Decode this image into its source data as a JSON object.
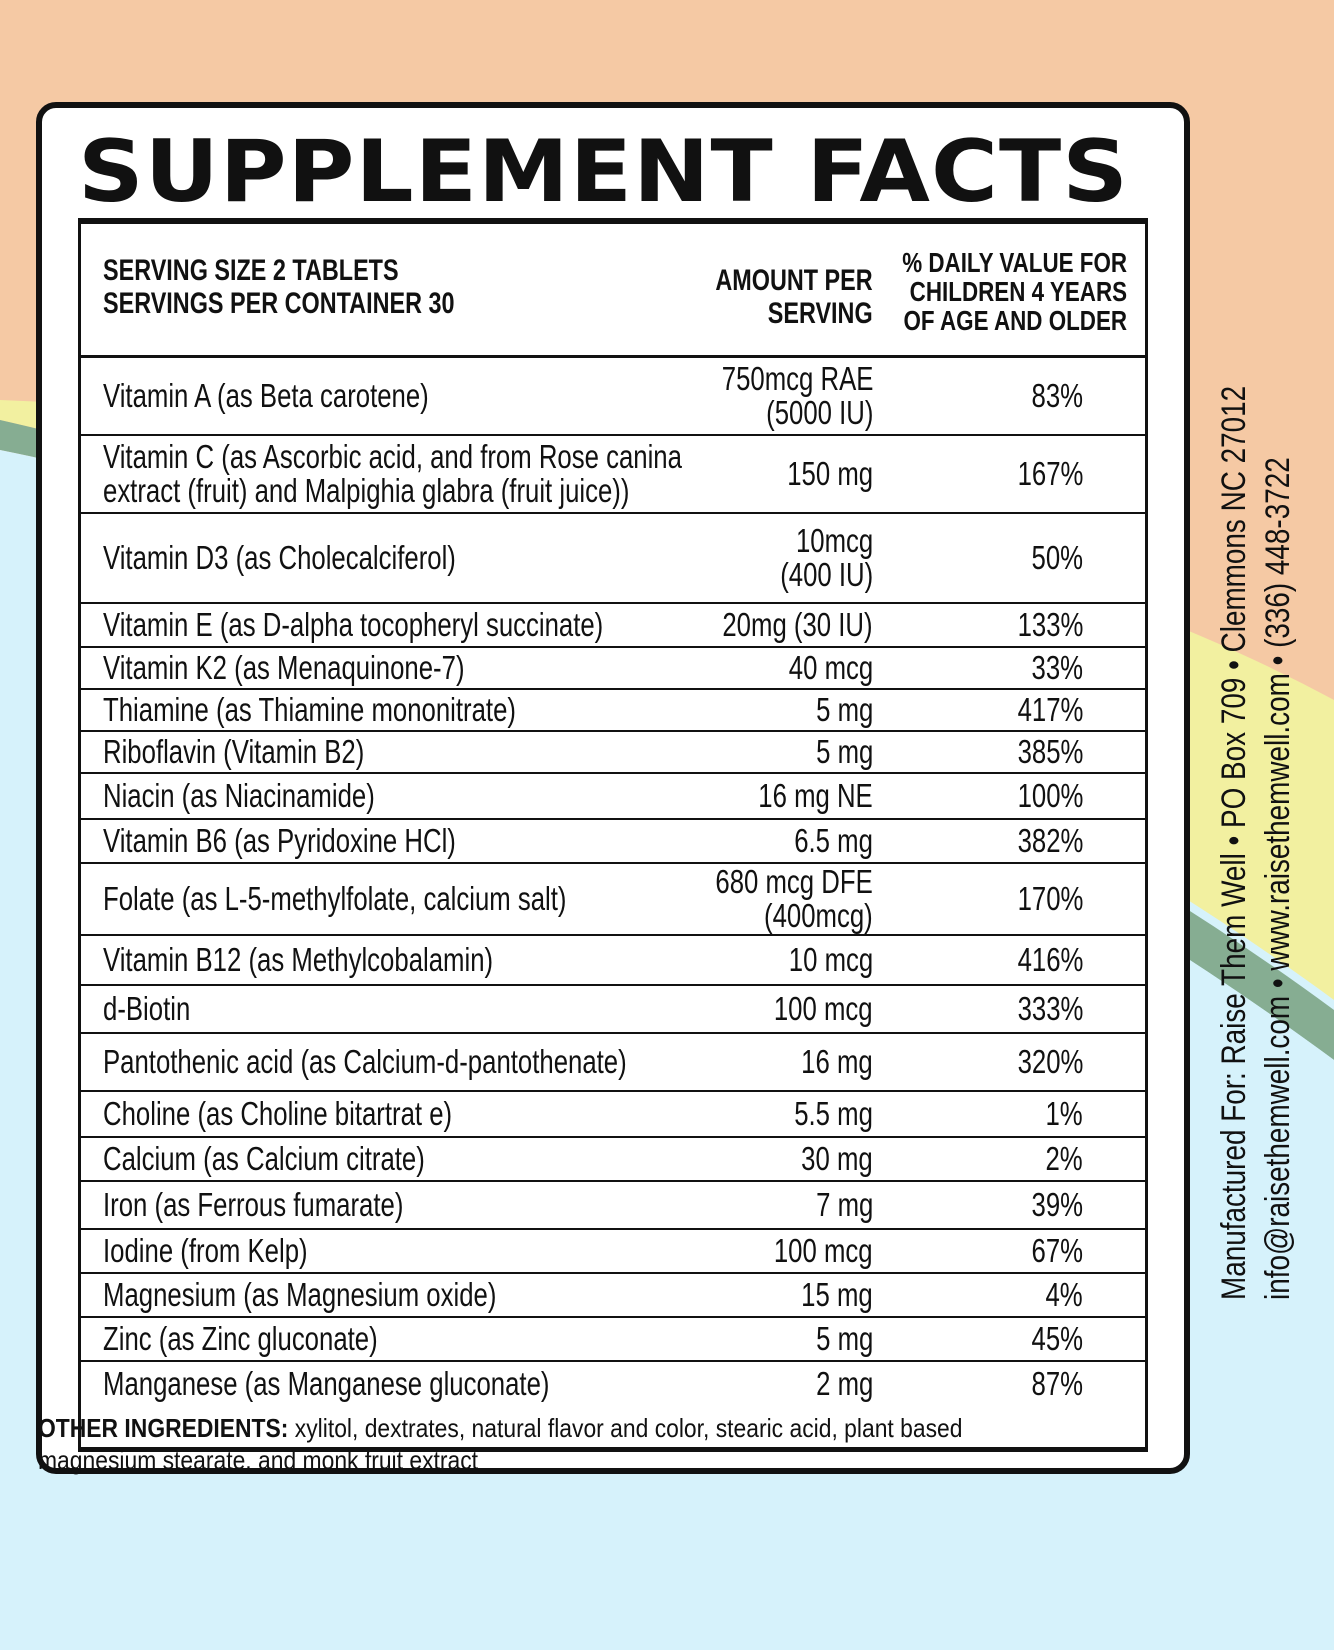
{
  "title": "SUPPLEMENT FACTS",
  "header": {
    "serving_size": "SERVING SIZE 2 TABLETS",
    "servings_per_container": "SERVINGS PER CONTAINER 30",
    "amount_line1": "AMOUNT PER",
    "amount_line2": "SERVING",
    "dv_line1": "% DAILY VALUE FOR",
    "dv_line2": "CHILDREN 4 YEARS",
    "dv_line3": "OF AGE AND OLDER"
  },
  "nutrients": [
    {
      "name": "Vitamin A (as Beta carotene)",
      "amount": "750mcg RAE\n(5000 IU)",
      "dv": "83%"
    },
    {
      "name": "Vitamin C (as Ascorbic acid, and from Rose canina\nextract (fruit) and Malpighia glabra (fruit juice))",
      "amount": "150 mg",
      "dv": "167%"
    },
    {
      "name": "Vitamin D3 (as Cholecalciferol)",
      "amount": "10mcg\n(400 IU)",
      "dv": "50%"
    },
    {
      "name": "Vitamin E (as D-alpha tocopheryl succinate)",
      "amount": "20mg (30 IU)",
      "dv": "133%"
    },
    {
      "name": "Vitamin K2 (as Menaquinone-7)",
      "amount": "40 mcg",
      "dv": "33%"
    },
    {
      "name": "Thiamine (as Thiamine mononitrate)",
      "amount": "5 mg",
      "dv": "417%"
    },
    {
      "name": "Riboflavin (Vitamin B2)",
      "amount": "5 mg",
      "dv": "385%"
    },
    {
      "name": "Niacin (as Niacinamide)",
      "amount": "16 mg NE",
      "dv": "100%"
    },
    {
      "name": "Vitamin B6 (as Pyridoxine HCl)",
      "amount": "6.5 mg",
      "dv": "382%"
    },
    {
      "name": "Folate (as L-5-methylfolate, calcium salt)",
      "amount": "680 mcg DFE\n(400mcg)",
      "dv": "170%"
    },
    {
      "name": "Vitamin B12 (as Methylcobalamin)",
      "amount": "10 mcg",
      "dv": "416%"
    },
    {
      "name": "d-Biotin",
      "amount": "100 mcg",
      "dv": "333%"
    },
    {
      "name": "Pantothenic acid (as Calcium-d-pantothenate)",
      "amount": "16 mg",
      "dv": "320%"
    },
    {
      "name": "Choline (as Choline bitartrat e)",
      "amount": "5.5 mg",
      "dv": "1%"
    },
    {
      "name": "Calcium (as Calcium citrate)",
      "amount": "30 mg",
      "dv": "2%"
    },
    {
      "name": "Iron (as Ferrous fumarate)",
      "amount": "7 mg",
      "dv": "39%"
    },
    {
      "name": "Iodine (from Kelp)",
      "amount": "100 mcg",
      "dv": "67%"
    },
    {
      "name": "Magnesium (as Magnesium oxide)",
      "amount": "15 mg",
      "dv": "4%"
    },
    {
      "name": "Zinc (as Zinc gluconate)",
      "amount": "5 mg",
      "dv": "45%"
    },
    {
      "name": "Manganese (as Manganese gluconate)",
      "amount": "2 mg",
      "dv": "87%"
    }
  ],
  "manufacturer": {
    "line1": "Manufactured For: Raise Them Well  •  PO Box 709  •  Clemmons  NC 27012",
    "line2": "info@raisethemwell.com  •  www.raisethemwell.com  •  (336) 448-3722"
  },
  "other_ingredients": {
    "label": "OTHER INGREDIENTS:",
    "text": " xylitol, dextrates, natural flavor and color, stearic acid, plant based magnesium stearate, and monk fruit extract"
  },
  "colors": {
    "peach": "#f2b898",
    "light_blue": "#d6f2fb",
    "yellow": "#f2f0a0",
    "green": "#86ad92",
    "ink": "#111111"
  }
}
